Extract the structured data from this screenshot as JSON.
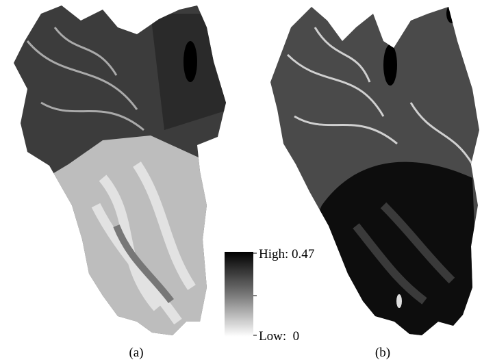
{
  "panels": [
    {
      "caption": "(a)"
    },
    {
      "caption": "(b)"
    }
  ],
  "legend": {
    "high_label": "High: 0.47",
    "low_label": "Low:  0"
  }
}
